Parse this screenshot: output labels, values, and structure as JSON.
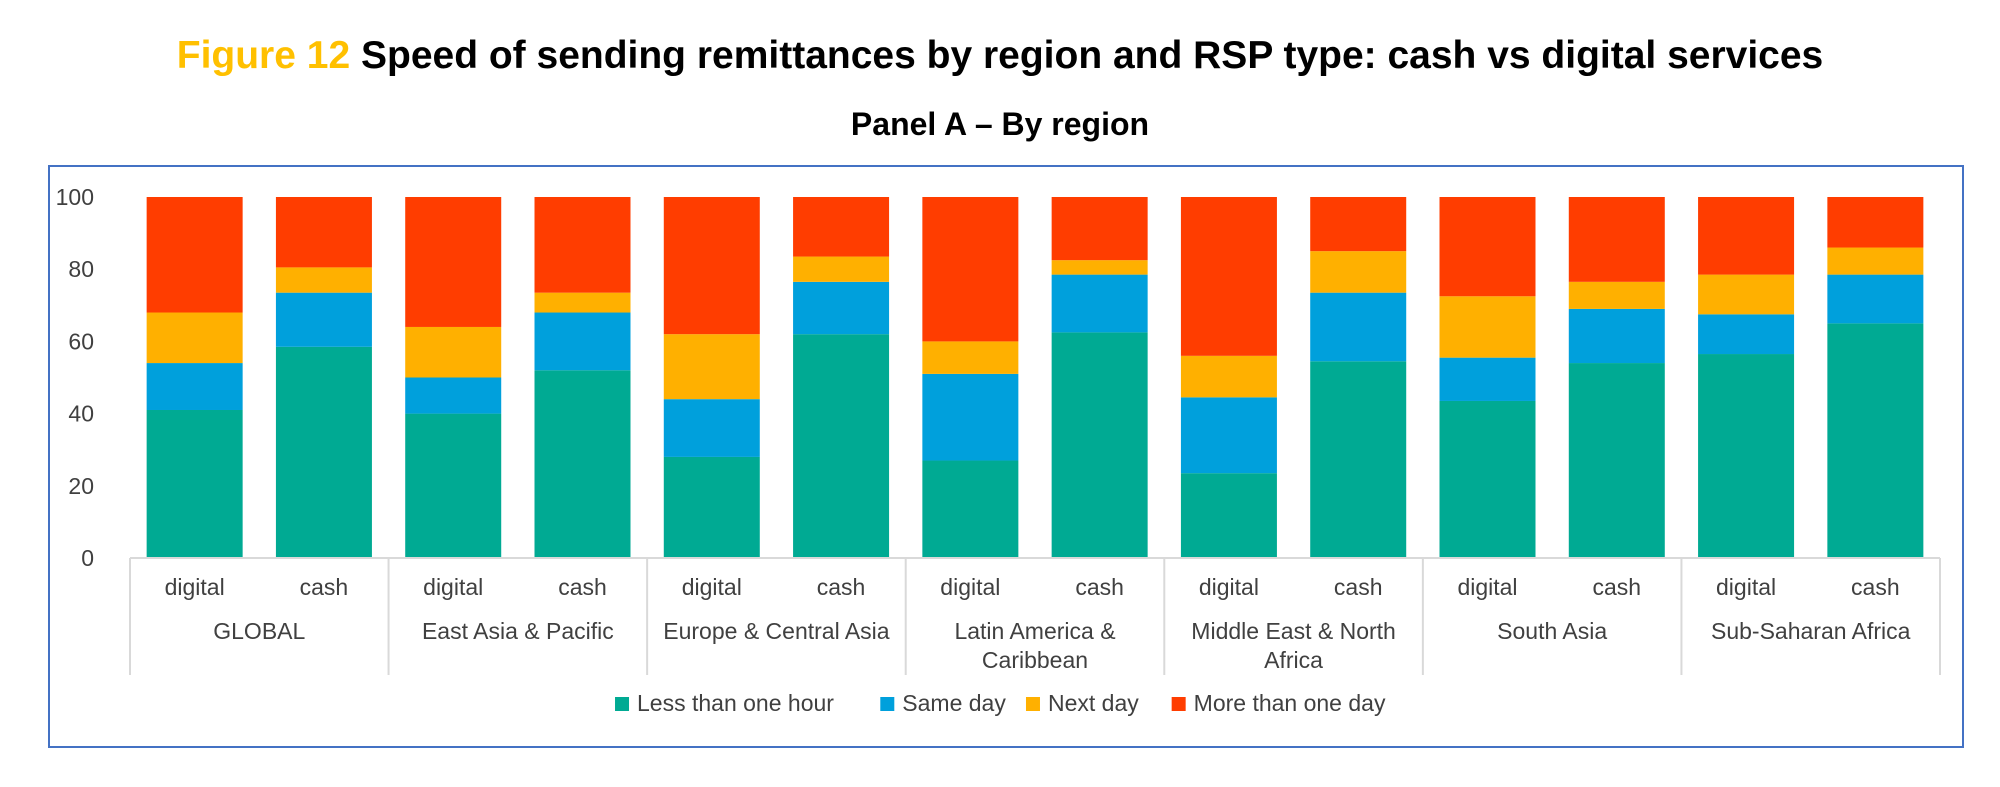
{
  "figure": {
    "number": "Figure 12",
    "title": "Speed of sending remittances by region and RSP type: cash vs digital services",
    "panel": "Panel A – By region"
  },
  "colors": {
    "less_than_one_hour": "#00AA93",
    "same_day": "#00A0DC",
    "next_day": "#FFB000",
    "more_than_one_day": "#FF3D00",
    "frame": "#4472C4",
    "figure_number": "#FFC000"
  },
  "chart_data": {
    "type": "bar",
    "stacked": true,
    "ylim": [
      0,
      100
    ],
    "yticks": [
      0,
      20,
      40,
      60,
      80,
      100
    ],
    "grid": false,
    "legend_position": "bottom",
    "groups": [
      {
        "label": "GLOBAL",
        "bars": [
          "digital",
          "cash"
        ]
      },
      {
        "label": "East Asia & Pacific",
        "bars": [
          "digital",
          "cash"
        ]
      },
      {
        "label": "Europe & Central Asia",
        "bars": [
          "digital",
          "cash"
        ]
      },
      {
        "label": "Latin America & Caribbean",
        "bars": [
          "digital",
          "cash"
        ]
      },
      {
        "label": "Middle East & North Africa",
        "bars": [
          "digital",
          "cash"
        ]
      },
      {
        "label": "South Asia",
        "bars": [
          "digital",
          "cash"
        ]
      },
      {
        "label": "Sub-Saharan Africa",
        "bars": [
          "digital",
          "cash"
        ]
      }
    ],
    "series": [
      {
        "name": "Less than one hour",
        "color": "#00AA93",
        "values": [
          41,
          58.5,
          40,
          52,
          28,
          62,
          27,
          62.5,
          23.5,
          54.5,
          43.5,
          54,
          56.5,
          65
        ]
      },
      {
        "name": "Same day",
        "color": "#00A0DC",
        "values": [
          13,
          15,
          10,
          16,
          16,
          14.5,
          24,
          16,
          21,
          19,
          12,
          15,
          11,
          13.5
        ]
      },
      {
        "name": "Next day",
        "color": "#FFB000",
        "values": [
          14,
          7,
          14,
          5.5,
          18,
          7,
          9,
          4,
          11.5,
          11.5,
          17,
          7.5,
          11,
          7.5
        ]
      },
      {
        "name": "More than one day",
        "color": "#FF3D00",
        "values": [
          32,
          19.5,
          36,
          26.5,
          38,
          16.5,
          40,
          17.5,
          44,
          15,
          27.5,
          23.5,
          21.5,
          14
        ]
      }
    ]
  }
}
